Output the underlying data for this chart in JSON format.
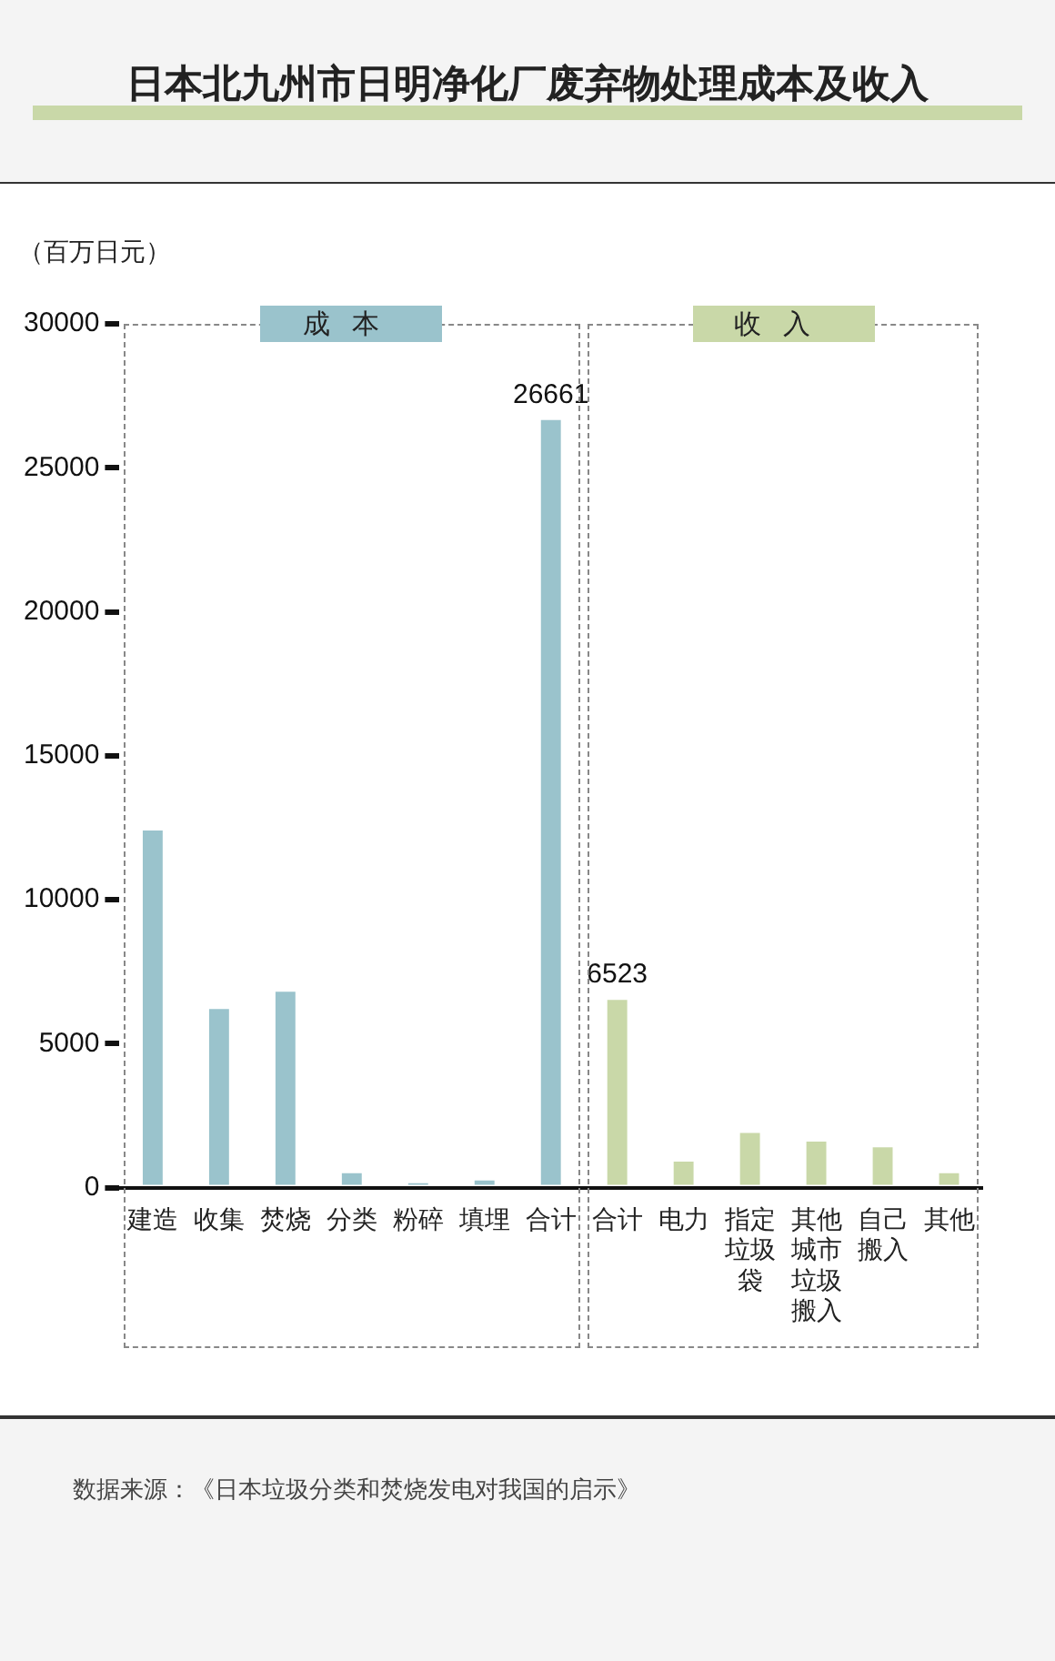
{
  "chart_data": {
    "type": "bar",
    "title": "日本北九州市日明净化厂废弃物处理成本及收入",
    "ylabel": "（百万日元）",
    "categories": [
      "建造",
      "收集",
      "焚烧",
      "分类",
      "粉碎",
      "填埋",
      "合计",
      "合计",
      "电力",
      "指定垃圾袋",
      "其他城市垃圾搬入",
      "自己搬入",
      "其他"
    ],
    "series": [
      {
        "name": "成本",
        "color": "#9ac3cc",
        "values": [
          12400,
          6200,
          6800,
          500,
          150,
          250,
          26661,
          null,
          null,
          null,
          null,
          null,
          null
        ],
        "value_labels": [
          null,
          null,
          null,
          null,
          null,
          null,
          "26661",
          null,
          null,
          null,
          null,
          null,
          null
        ]
      },
      {
        "name": "收入",
        "color": "#c9d8a8",
        "values": [
          null,
          null,
          null,
          null,
          null,
          null,
          null,
          6523,
          900,
          1900,
          1600,
          1400,
          500
        ],
        "value_labels": [
          null,
          null,
          null,
          null,
          null,
          null,
          null,
          "6523",
          null,
          null,
          null,
          null,
          null
        ]
      }
    ],
    "ylim": [
      0,
      30000
    ],
    "yticks": [
      0,
      5000,
      10000,
      15000,
      20000,
      25000,
      30000
    ],
    "grid": false,
    "annotations": [
      "数据来源：《日本垃圾分类和焚烧发电对我国的启示》"
    ]
  }
}
